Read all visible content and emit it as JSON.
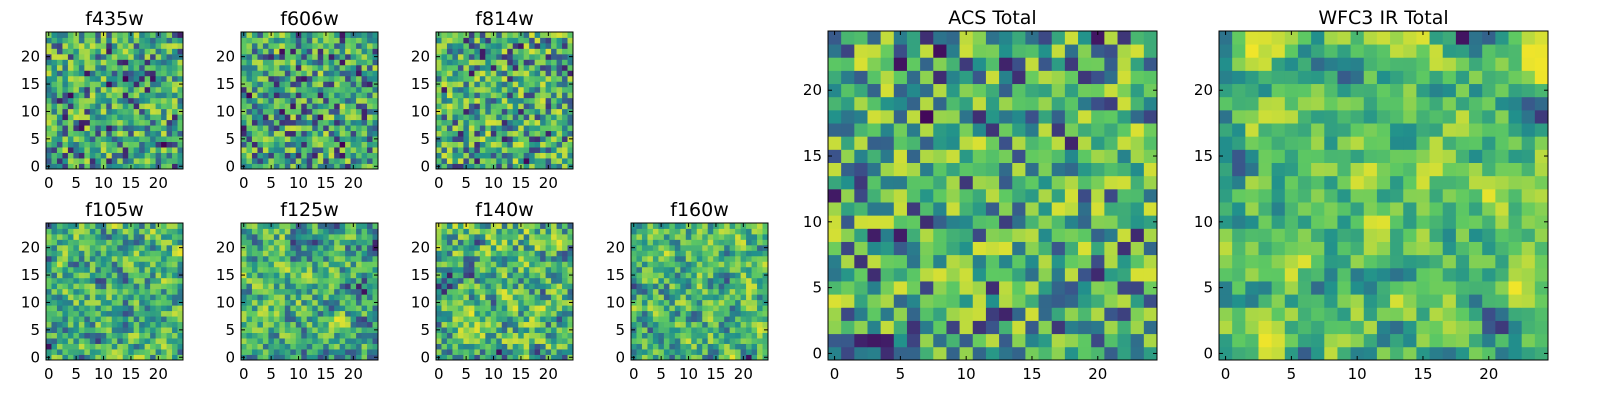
{
  "figure": {
    "background": "#ffffff"
  },
  "colormap": {
    "name": "viridis",
    "stops": [
      "#440154",
      "#3b528b",
      "#21918c",
      "#5ec962",
      "#fde725"
    ]
  },
  "chart_data": [
    {
      "type": "heatmap",
      "title": "f435w",
      "xlabel": "",
      "ylabel": "",
      "grid_size": 25,
      "xlim": [
        0,
        25
      ],
      "ylim": [
        0,
        25
      ],
      "x_ticks": [
        0,
        5,
        10,
        15,
        20
      ],
      "y_ticks": [
        0,
        5,
        10,
        15,
        20
      ],
      "z_range": [
        0,
        1
      ],
      "seed": 11,
      "smoothing": 0,
      "bias": 0.0
    },
    {
      "type": "heatmap",
      "title": "f606w",
      "xlabel": "",
      "ylabel": "",
      "grid_size": 25,
      "xlim": [
        0,
        25
      ],
      "ylim": [
        0,
        25
      ],
      "x_ticks": [
        0,
        5,
        10,
        15,
        20
      ],
      "y_ticks": [
        0,
        5,
        10,
        15,
        20
      ],
      "z_range": [
        0,
        1
      ],
      "seed": 23,
      "smoothing": 0,
      "bias": 0.0
    },
    {
      "type": "heatmap",
      "title": "f814w",
      "xlabel": "",
      "ylabel": "",
      "grid_size": 25,
      "xlim": [
        0,
        25
      ],
      "ylim": [
        0,
        25
      ],
      "x_ticks": [
        0,
        5,
        10,
        15,
        20
      ],
      "y_ticks": [
        0,
        5,
        10,
        15,
        20
      ],
      "z_range": [
        0,
        1
      ],
      "seed": 37,
      "smoothing": 0,
      "bias": 0.05
    },
    {
      "type": "heatmap",
      "title": "f105w",
      "xlabel": "",
      "ylabel": "",
      "grid_size": 25,
      "xlim": [
        0,
        25
      ],
      "ylim": [
        0,
        25
      ],
      "x_ticks": [
        0,
        5,
        10,
        15,
        20
      ],
      "y_ticks": [
        0,
        5,
        10,
        15,
        20
      ],
      "z_range": [
        0,
        1
      ],
      "seed": 41,
      "smoothing": 1,
      "bias": 0.1
    },
    {
      "type": "heatmap",
      "title": "f125w",
      "xlabel": "",
      "ylabel": "",
      "grid_size": 25,
      "xlim": [
        0,
        25
      ],
      "ylim": [
        0,
        25
      ],
      "x_ticks": [
        0,
        5,
        10,
        15,
        20
      ],
      "y_ticks": [
        0,
        5,
        10,
        15,
        20
      ],
      "z_range": [
        0,
        1
      ],
      "seed": 53,
      "smoothing": 1,
      "bias": 0.1
    },
    {
      "type": "heatmap",
      "title": "f140w",
      "xlabel": "",
      "ylabel": "",
      "grid_size": 25,
      "xlim": [
        0,
        25
      ],
      "ylim": [
        0,
        25
      ],
      "x_ticks": [
        0,
        5,
        10,
        15,
        20
      ],
      "y_ticks": [
        0,
        5,
        10,
        15,
        20
      ],
      "z_range": [
        0,
        1
      ],
      "seed": 67,
      "smoothing": 1,
      "bias": 0.1
    },
    {
      "type": "heatmap",
      "title": "f160w",
      "xlabel": "",
      "ylabel": "",
      "grid_size": 25,
      "xlim": [
        0,
        25
      ],
      "ylim": [
        0,
        25
      ],
      "x_ticks": [
        0,
        5,
        10,
        15,
        20
      ],
      "y_ticks": [
        0,
        5,
        10,
        15,
        20
      ],
      "z_range": [
        0,
        1
      ],
      "seed": 79,
      "smoothing": 1,
      "bias": 0.1
    },
    {
      "type": "heatmap",
      "title": "ACS Total",
      "xlabel": "",
      "ylabel": "",
      "grid_size": 25,
      "xlim": [
        0,
        25
      ],
      "ylim": [
        0,
        25
      ],
      "x_ticks": [
        0,
        5,
        10,
        15,
        20
      ],
      "y_ticks": [
        0,
        5,
        10,
        15,
        20
      ],
      "z_range": [
        0,
        1
      ],
      "seed": 97,
      "smoothing": 0,
      "bias": 0.05
    },
    {
      "type": "heatmap",
      "title": "WFC3 IR Total",
      "xlabel": "",
      "ylabel": "",
      "grid_size": 25,
      "xlim": [
        0,
        25
      ],
      "ylim": [
        0,
        25
      ],
      "x_ticks": [
        0,
        5,
        10,
        15,
        20
      ],
      "y_ticks": [
        0,
        5,
        10,
        15,
        20
      ],
      "z_range": [
        0,
        1
      ],
      "seed": 113,
      "smoothing": 2,
      "bias": 0.12
    }
  ]
}
